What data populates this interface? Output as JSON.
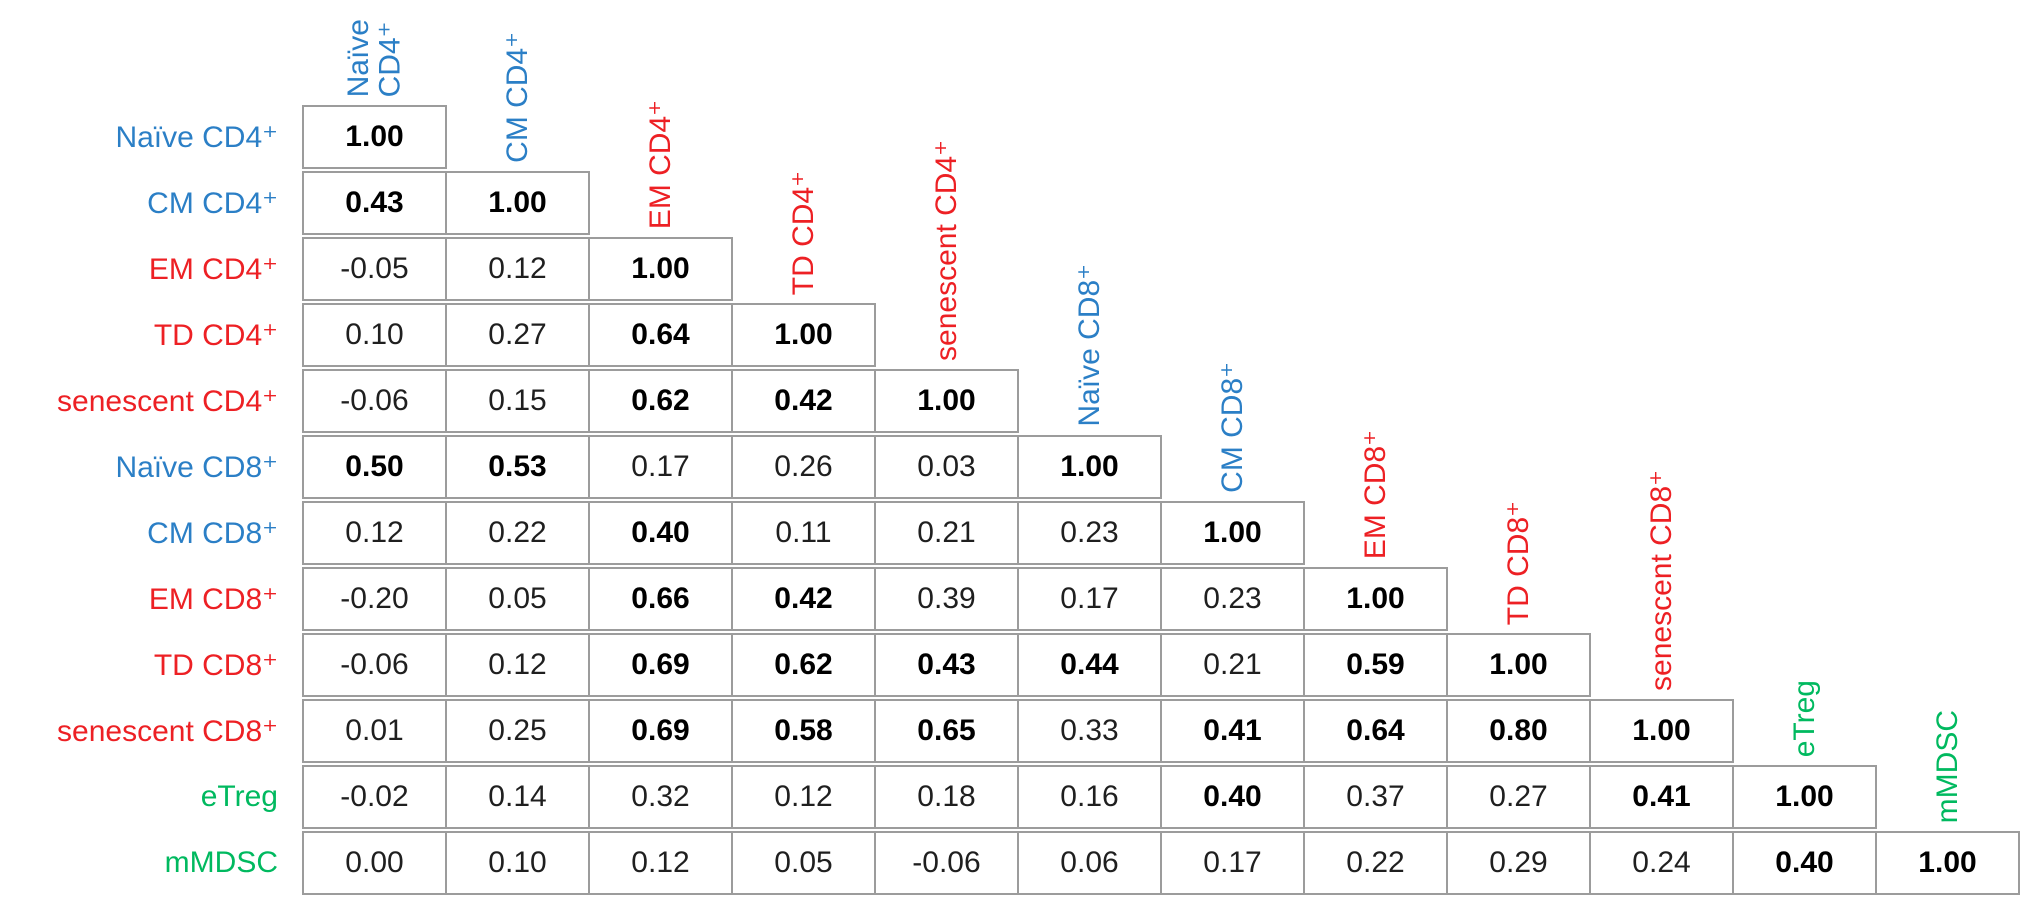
{
  "chart_data": {
    "type": "table",
    "variant": "lower-triangular-correlation-matrix",
    "title": "",
    "legend_position": "none",
    "grid": "cell-borders",
    "colors": {
      "blue": "#2B7FC6",
      "red": "#ED2024",
      "green": "#00B95F",
      "value_regular": "#1f1f1f",
      "value_bold": "#000000",
      "border": "#9c9c9c"
    },
    "labels": [
      {
        "label": "Naïve CD4⁺",
        "group": "blue",
        "header_two_line": true,
        "header_lines": "Naïve\nCD4⁺"
      },
      {
        "label": "CM CD4⁺",
        "group": "blue",
        "header_two_line": false,
        "header_lines": "CM CD4⁺"
      },
      {
        "label": "EM CD4⁺",
        "group": "red",
        "header_two_line": false,
        "header_lines": "EM CD4⁺"
      },
      {
        "label": "TD CD4⁺",
        "group": "red",
        "header_two_line": false,
        "header_lines": "TD CD4⁺"
      },
      {
        "label": "senescent CD4⁺",
        "group": "red",
        "header_two_line": false,
        "header_lines": "senescent CD4⁺"
      },
      {
        "label": "Naïve CD8⁺",
        "group": "blue",
        "header_two_line": false,
        "header_lines": "Naïve CD8⁺"
      },
      {
        "label": "CM CD8⁺",
        "group": "blue",
        "header_two_line": false,
        "header_lines": "CM CD8⁺"
      },
      {
        "label": "EM CD8⁺",
        "group": "red",
        "header_two_line": false,
        "header_lines": "EM CD8⁺"
      },
      {
        "label": "TD CD8⁺",
        "group": "red",
        "header_two_line": false,
        "header_lines": "TD CD8⁺"
      },
      {
        "label": "senescent CD8⁺",
        "group": "red",
        "header_two_line": false,
        "header_lines": "senescent CD8⁺"
      },
      {
        "label": "eTreg",
        "group": "green",
        "header_two_line": false,
        "header_lines": "eTreg"
      },
      {
        "label": "mMDSC",
        "group": "green",
        "header_two_line": false,
        "header_lines": "mMDSC"
      }
    ],
    "matrix": [
      [
        "1.00"
      ],
      [
        "0.43",
        "1.00"
      ],
      [
        "-0.05",
        "0.12",
        "1.00"
      ],
      [
        "0.10",
        "0.27",
        "0.64",
        "1.00"
      ],
      [
        "-0.06",
        "0.15",
        "0.62",
        "0.42",
        "1.00"
      ],
      [
        "0.50",
        "0.53",
        "0.17",
        "0.26",
        "0.03",
        "1.00"
      ],
      [
        "0.12",
        "0.22",
        "0.40",
        "0.11",
        "0.21",
        "0.23",
        "1.00"
      ],
      [
        "-0.20",
        "0.05",
        "0.66",
        "0.42",
        "0.39",
        "0.17",
        "0.23",
        "1.00"
      ],
      [
        "-0.06",
        "0.12",
        "0.69",
        "0.62",
        "0.43",
        "0.44",
        "0.21",
        "0.59",
        "1.00"
      ],
      [
        "0.01",
        "0.25",
        "0.69",
        "0.58",
        "0.65",
        "0.33",
        "0.41",
        "0.64",
        "0.80",
        "1.00"
      ],
      [
        "-0.02",
        "0.14",
        "0.32",
        "0.12",
        "0.18",
        "0.16",
        "0.40",
        "0.37",
        "0.27",
        "0.41",
        "1.00"
      ],
      [
        "0.00",
        "0.10",
        "0.12",
        "0.05",
        "-0.06",
        "0.06",
        "0.17",
        "0.22",
        "0.29",
        "0.24",
        "0.40",
        "1.00"
      ]
    ],
    "bold": [
      [
        true
      ],
      [
        true,
        true
      ],
      [
        false,
        false,
        true
      ],
      [
        false,
        false,
        true,
        true
      ],
      [
        false,
        false,
        true,
        true,
        true
      ],
      [
        true,
        true,
        false,
        false,
        false,
        true
      ],
      [
        false,
        false,
        true,
        false,
        false,
        false,
        true
      ],
      [
        false,
        false,
        true,
        true,
        false,
        false,
        false,
        true
      ],
      [
        false,
        false,
        true,
        true,
        true,
        true,
        false,
        true,
        true
      ],
      [
        false,
        false,
        true,
        true,
        true,
        false,
        true,
        true,
        true,
        true
      ],
      [
        false,
        false,
        false,
        false,
        false,
        false,
        true,
        false,
        false,
        true,
        true
      ],
      [
        false,
        false,
        false,
        false,
        false,
        false,
        false,
        false,
        false,
        false,
        true,
        true
      ]
    ]
  }
}
